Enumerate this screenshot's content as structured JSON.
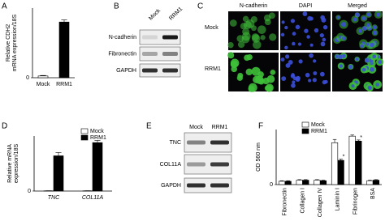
{
  "chart_data": [
    {
      "panel": "A",
      "type": "bar",
      "ylabel": [
        "Relative CDH2",
        "mRNA expression/18S"
      ],
      "categories": [
        "Mock",
        "RRM1"
      ],
      "values": [
        1,
        32
      ],
      "errors": [
        0.3,
        1.2
      ],
      "colors": [
        "#ffffff",
        "#000000"
      ],
      "ylim": [
        0,
        40
      ],
      "yticks": [
        0
      ]
    },
    {
      "panel": "D",
      "type": "bar",
      "ylabel": [
        "Relative mRNA",
        "expression/18S"
      ],
      "italic_categories": true,
      "categories": [
        "TNC",
        "COL11A"
      ],
      "series": [
        {
          "name": "Mock",
          "color": "#ffffff",
          "values": [
            1,
            1
          ],
          "errors": [
            0.5,
            0.5
          ]
        },
        {
          "name": "RRM1",
          "color": "#000000",
          "values": [
            160,
            220
          ],
          "errors": [
            15,
            10
          ]
        }
      ],
      "ylim": [
        0,
        250
      ],
      "yticks": [
        0
      ],
      "legend": "top-right"
    },
    {
      "panel": "F",
      "type": "bar",
      "ylabel": [
        "OD 560 nm"
      ],
      "rotate_categories": true,
      "categories": [
        "Fibronectin",
        "Collagen I",
        "Collagen IV",
        "Laminin I",
        "Fibrinogen",
        "BSA"
      ],
      "series": [
        {
          "name": "Mock",
          "color": "#ffffff",
          "values": [
            0.06,
            0.08,
            0.08,
            0.76,
            0.88,
            0.07
          ],
          "errors": [
            0.01,
            0.01,
            0.01,
            0.06,
            0.02,
            0.01
          ]
        },
        {
          "name": "RRM1",
          "color": "#000000",
          "values": [
            0.06,
            0.08,
            0.07,
            0.44,
            0.79,
            0.08
          ],
          "errors": [
            0.01,
            0.01,
            0.01,
            0.02,
            0.02,
            0.01
          ],
          "significance": [
            null,
            null,
            null,
            "*",
            "*",
            null
          ]
        }
      ],
      "ylim": [
        0,
        1
      ],
      "yticks": [
        0
      ],
      "legend": "top-left"
    }
  ],
  "blot_b": {
    "panel": "B",
    "lanes": [
      "Mock",
      "RRM1"
    ],
    "rows": [
      "N-cadherin",
      "Fibronectin",
      "GAPDH"
    ]
  },
  "micro_c": {
    "panel": "C",
    "columns": [
      "N-cadherin",
      "DAPI",
      "Merged"
    ],
    "rows": [
      "Mock",
      "RRM1"
    ]
  },
  "blot_e": {
    "panel": "E",
    "lanes": [
      "Mock",
      "RRM1"
    ],
    "rows": [
      "TNC",
      "COL11A",
      "GAPDH"
    ]
  }
}
